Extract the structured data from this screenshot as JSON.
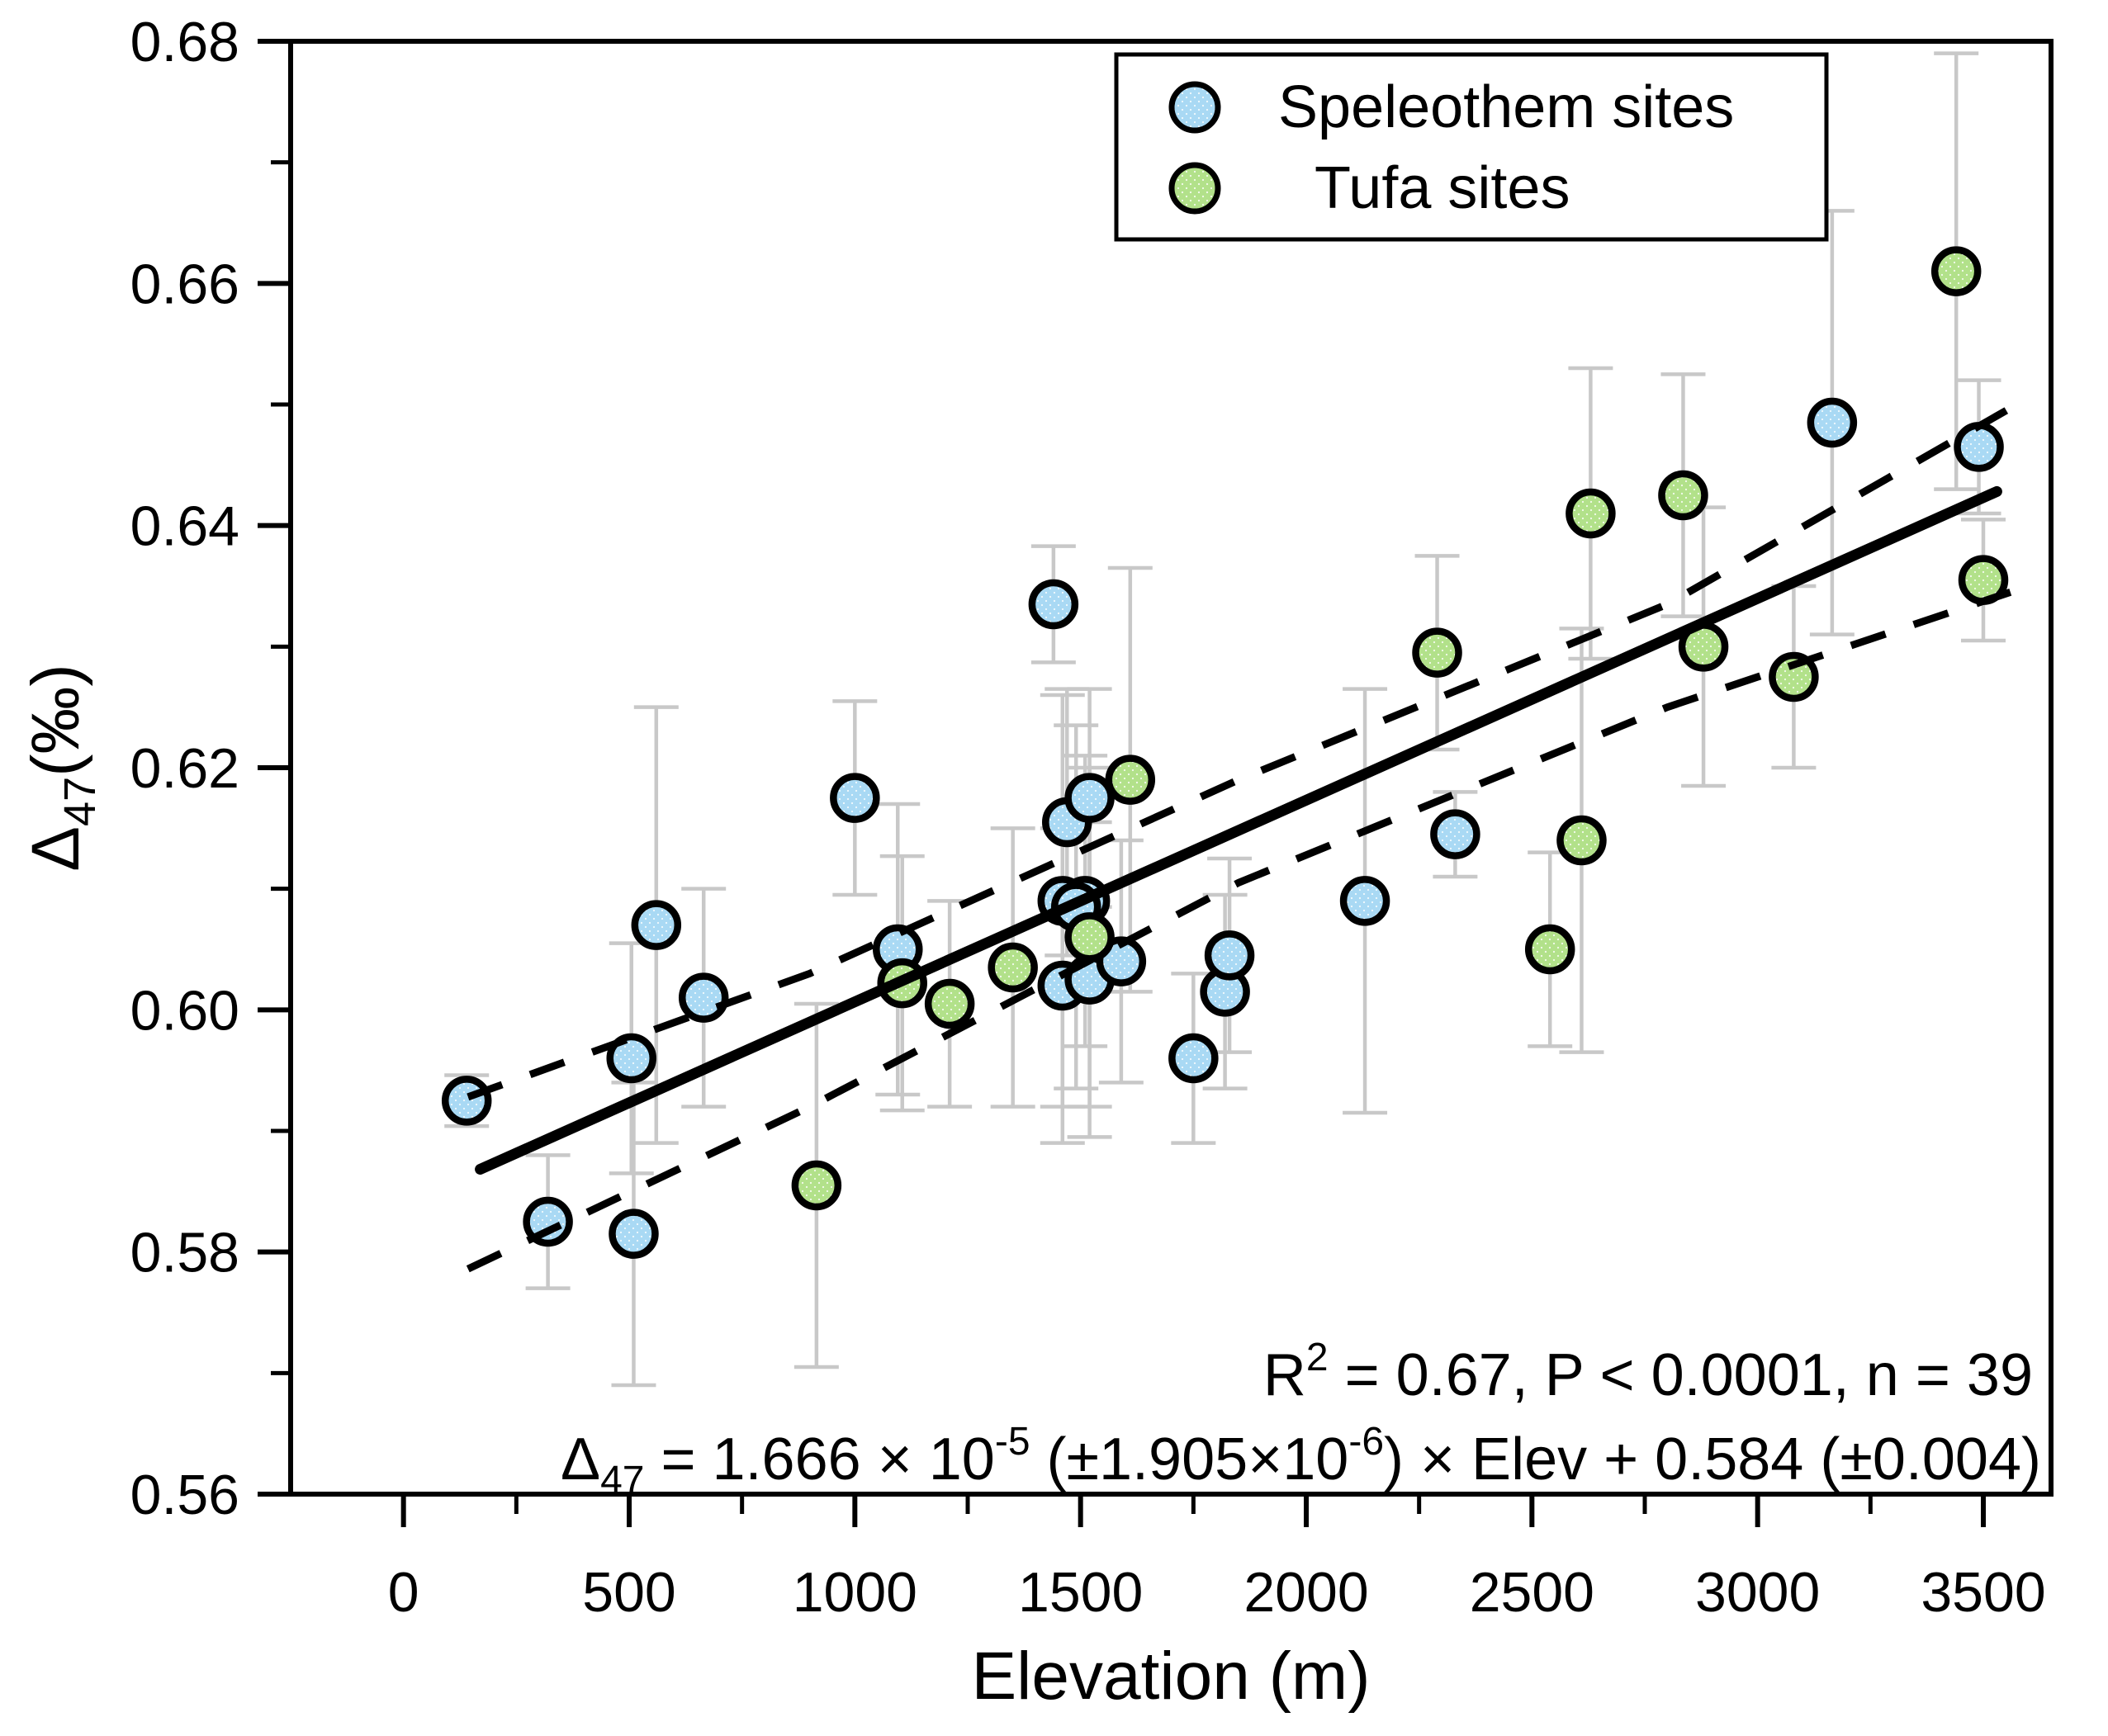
{
  "figure": {
    "background": "#ffffff",
    "frame_color": "#000000"
  },
  "axes": {
    "x": {
      "label": "Elevation (m)",
      "min": -250,
      "max": 3650,
      "major_ticks": [
        {
          "v": 0,
          "label": "0"
        },
        {
          "v": 500,
          "label": "500"
        },
        {
          "v": 1000,
          "label": "1000"
        },
        {
          "v": 1500,
          "label": "1500"
        },
        {
          "v": 2000,
          "label": "2000"
        },
        {
          "v": 2500,
          "label": "2500"
        },
        {
          "v": 3000,
          "label": "3000"
        },
        {
          "v": 3500,
          "label": "3500"
        }
      ],
      "minor_ticks": [
        250,
        750,
        1250,
        1750,
        2250,
        2750,
        3250
      ]
    },
    "y": {
      "label_segments": [
        {
          "t": "Δ",
          "v": 0
        },
        {
          "t": "47",
          "v": -1
        },
        {
          "t": "(‰)",
          "v": 0
        }
      ],
      "min": 0.56,
      "max": 0.68,
      "major_ticks": [
        {
          "v": 0.56,
          "label": "0.56"
        },
        {
          "v": 0.58,
          "label": "0.58"
        },
        {
          "v": 0.6,
          "label": "0.60"
        },
        {
          "v": 0.62,
          "label": "0.62"
        },
        {
          "v": 0.64,
          "label": "0.64"
        },
        {
          "v": 0.66,
          "label": "0.66"
        },
        {
          "v": 0.68,
          "label": "0.68"
        }
      ],
      "minor_ticks": [
        0.57,
        0.59,
        0.61,
        0.63,
        0.65,
        0.67
      ]
    }
  },
  "legend": {
    "items": [
      {
        "label": "Speleothem sites",
        "series": "speleothem"
      },
      {
        "label": "Tufa sites",
        "series": "tufa"
      }
    ]
  },
  "annotations": {
    "stats_segments": [
      {
        "t": "R",
        "v": 0
      },
      {
        "t": "2",
        "v": 1
      },
      {
        "t": " = 0.67, P < 0.0001, n = 39",
        "v": 0
      }
    ],
    "equation_segments": [
      {
        "t": "Δ",
        "v": 0
      },
      {
        "t": "47",
        "v": -1
      },
      {
        "t": " = 1.666 × 10",
        "v": 0
      },
      {
        "t": "-5",
        "v": 1
      },
      {
        "t": " (±1.905×10",
        "v": 0
      },
      {
        "t": "-6",
        "v": 1
      },
      {
        "t": ") × Elev + 0.584 (±0.004)",
        "v": 0
      }
    ]
  },
  "chart_data": {
    "type": "scatter",
    "title": "",
    "xlabel": "Elevation (m)",
    "ylabel": "Delta47 (permil)",
    "xlim": [
      -250,
      3650
    ],
    "ylim": [
      0.56,
      0.68
    ],
    "grid": false,
    "legend_position": "top-right-inside",
    "series": [
      {
        "name": "Speleothem sites",
        "marker_fill": "#a9d9f4",
        "marker_edge": "#000000",
        "points": [
          {
            "x": 140,
            "y": 0.5925,
            "e": 0.0021
          },
          {
            "x": 320,
            "y": 0.5825,
            "e": 0.0055
          },
          {
            "x": 505,
            "y": 0.596,
            "e": 0.0095
          },
          {
            "x": 510,
            "y": 0.5815,
            "e": 0.0125
          },
          {
            "x": 560,
            "y": 0.607,
            "e": 0.018
          },
          {
            "x": 665,
            "y": 0.601,
            "e": 0.009
          },
          {
            "x": 1000,
            "y": 0.6175,
            "e": 0.008
          },
          {
            "x": 1095,
            "y": 0.605,
            "e": 0.012
          },
          {
            "x": 1440,
            "y": 0.6335,
            "e": 0.0048
          },
          {
            "x": 1470,
            "y": 0.6155,
            "e": 0.011
          },
          {
            "x": 1520,
            "y": 0.6175,
            "e": 0.009
          },
          {
            "x": 1460,
            "y": 0.609,
            "e": 0.017
          },
          {
            "x": 1510,
            "y": 0.609,
            "e": 0.012
          },
          {
            "x": 1490,
            "y": 0.6085,
            "e": 0.015
          },
          {
            "x": 1460,
            "y": 0.602,
            "e": 0.013
          },
          {
            "x": 1520,
            "y": 0.6025,
            "e": 0.013
          },
          {
            "x": 1590,
            "y": 0.604,
            "e": 0.01
          },
          {
            "x": 1750,
            "y": 0.596,
            "e": 0.007
          },
          {
            "x": 1820,
            "y": 0.6015,
            "e": 0.008
          },
          {
            "x": 1830,
            "y": 0.6045,
            "e": 0.008
          },
          {
            "x": 2130,
            "y": 0.609,
            "e": 0.0175
          },
          {
            "x": 2330,
            "y": 0.6145,
            "e": 0.0035
          },
          {
            "x": 3165,
            "y": 0.6485,
            "e": 0.0175
          },
          {
            "x": 3490,
            "y": 0.6465,
            "e": 0.0055
          }
        ]
      },
      {
        "name": "Tufa sites",
        "marker_fill": "#b2e18a",
        "marker_edge": "#000000",
        "points": [
          {
            "x": 915,
            "y": 0.5855,
            "e": 0.015
          },
          {
            "x": 1105,
            "y": 0.6022,
            "e": 0.0105
          },
          {
            "x": 1210,
            "y": 0.6005,
            "e": 0.0085
          },
          {
            "x": 1350,
            "y": 0.6035,
            "e": 0.0115
          },
          {
            "x": 1520,
            "y": 0.606,
            "e": 0.014
          },
          {
            "x": 1610,
            "y": 0.619,
            "e": 0.0175
          },
          {
            "x": 2290,
            "y": 0.6295,
            "e": 0.008
          },
          {
            "x": 2540,
            "y": 0.605,
            "e": 0.008
          },
          {
            "x": 2610,
            "y": 0.614,
            "e": 0.0175
          },
          {
            "x": 2630,
            "y": 0.641,
            "e": 0.012
          },
          {
            "x": 2835,
            "y": 0.6425,
            "e": 0.01
          },
          {
            "x": 2880,
            "y": 0.63,
            "e": 0.0115
          },
          {
            "x": 3080,
            "y": 0.6275,
            "e": 0.0075
          },
          {
            "x": 3440,
            "y": 0.661,
            "e": 0.018
          },
          {
            "x": 3500,
            "y": 0.6355,
            "e": 0.005
          }
        ]
      }
    ],
    "regression": {
      "slope_per_m": 1.666e-05,
      "intercept": 0.584,
      "x_start": 170,
      "x_end": 3530,
      "color": "#000000"
    },
    "confidence_band": {
      "upper": [
        [
          143,
          0.5928
        ],
        [
          900,
          0.603
        ],
        [
          1850,
          0.619
        ],
        [
          2800,
          0.6335
        ],
        [
          3560,
          0.6497
        ]
      ],
      "lower": [
        [
          143,
          0.5786
        ],
        [
          900,
          0.592
        ],
        [
          1850,
          0.6105
        ],
        [
          2800,
          0.625
        ],
        [
          3560,
          0.6345
        ]
      ],
      "color": "#000000"
    },
    "error_bar_color": "#c8c8c8"
  }
}
